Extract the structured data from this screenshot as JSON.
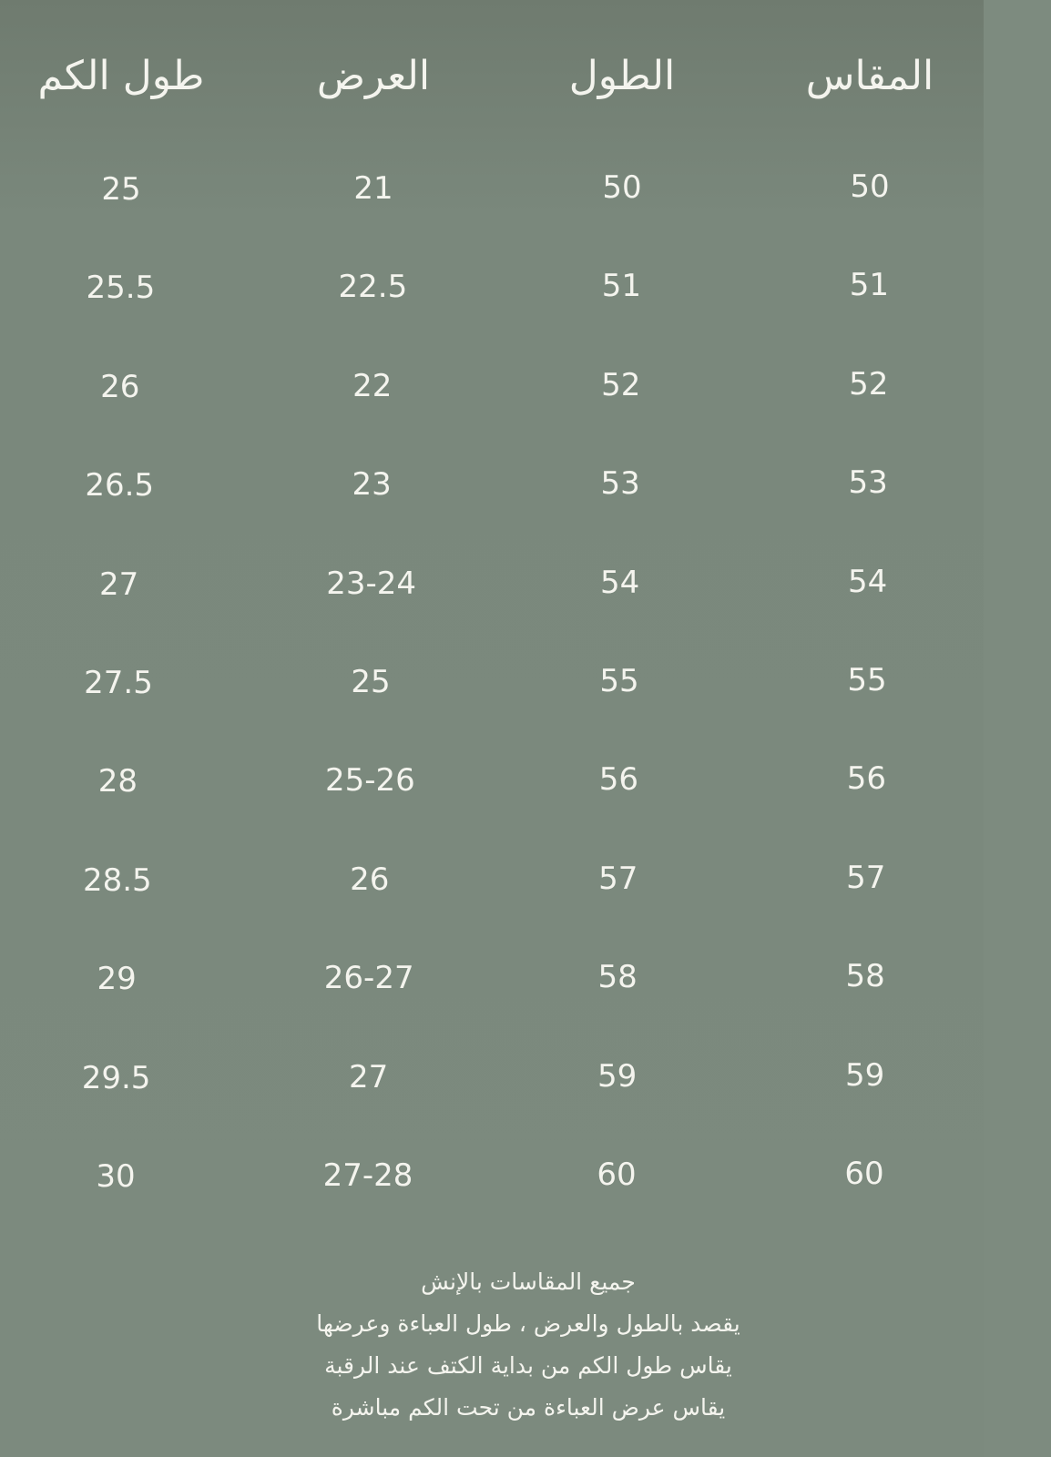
{
  "table": {
    "headers": [
      "المقاس",
      "الطول",
      "العرض",
      "طول الكم"
    ],
    "rows": [
      [
        "50",
        "50",
        "21",
        "25"
      ],
      [
        "51",
        "51",
        "22.5",
        "25.5"
      ],
      [
        "52",
        "52",
        "22",
        "26"
      ],
      [
        "53",
        "53",
        "23",
        "26.5"
      ],
      [
        "54",
        "54",
        "23-24",
        "27"
      ],
      [
        "55",
        "55",
        "25",
        "27.5"
      ],
      [
        "56",
        "56",
        "25-26",
        "28"
      ],
      [
        "57",
        "57",
        "26",
        "28.5"
      ],
      [
        "58",
        "58",
        "26-27",
        "29"
      ],
      [
        "59",
        "59",
        "27",
        "29.5"
      ],
      [
        "60",
        "60",
        "27-28",
        "30"
      ]
    ]
  },
  "notes": [
    "جميع المقاسات بالإنش",
    "يقصد بالطول والعرض ، طول العباءة وعرضها",
    "يقاس طول الكم من بداية الكتف عند الرقبة",
    "يقاس عرض العباءة من تحت الكم مباشرة"
  ],
  "colors": {
    "background": "#7b897d",
    "text": "#f4f4ee"
  }
}
